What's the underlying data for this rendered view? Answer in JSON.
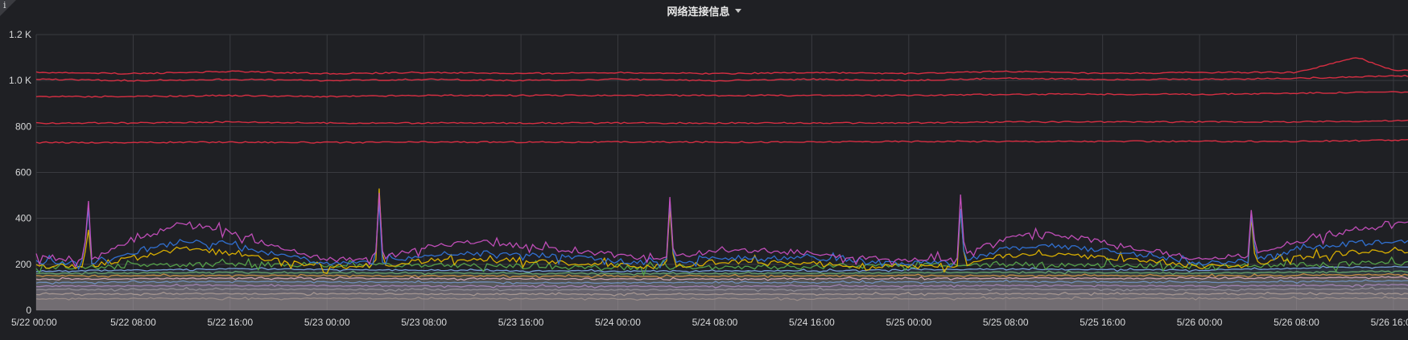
{
  "panel": {
    "title": "网络连接信息",
    "info_icon": "info-icon",
    "dropdown_icon": "caret-down-icon"
  },
  "chart_data": {
    "type": "line",
    "title": "网络连接信息",
    "xlabel": "",
    "ylabel": "",
    "ylim": [
      0,
      1200
    ],
    "xlim": [
      "2022-05-22T00:00",
      "2022-05-26T16:00"
    ],
    "grid": true,
    "legend": "none",
    "y_ticks": [
      {
        "value": 0,
        "label": "0"
      },
      {
        "value": 200,
        "label": "200"
      },
      {
        "value": 400,
        "label": "400"
      },
      {
        "value": 600,
        "label": "600"
      },
      {
        "value": 800,
        "label": "800"
      },
      {
        "value": 1000,
        "label": "1.0 K"
      },
      {
        "value": 1200,
        "label": "1.2 K"
      }
    ],
    "x_ticks": [
      {
        "value": 0,
        "label": "5/22 00:00"
      },
      {
        "value": 8,
        "label": "5/22 08:00"
      },
      {
        "value": 16,
        "label": "5/22 16:00"
      },
      {
        "value": 24,
        "label": "5/23 00:00"
      },
      {
        "value": 32,
        "label": "5/23 08:00"
      },
      {
        "value": 40,
        "label": "5/23 16:00"
      },
      {
        "value": 48,
        "label": "5/24 00:00"
      },
      {
        "value": 56,
        "label": "5/24 08:00"
      },
      {
        "value": 64,
        "label": "5/24 16:00"
      },
      {
        "value": 72,
        "label": "5/25 00:00"
      },
      {
        "value": 80,
        "label": "5/25 08:00"
      },
      {
        "value": 88,
        "label": "5/25 16:00"
      },
      {
        "value": 96,
        "label": "5/26 00:00"
      },
      {
        "value": 104,
        "label": "5/26 08:00"
      },
      {
        "value": 112,
        "label": "5/26 16:00"
      }
    ],
    "series": [
      {
        "color": "#e02f44",
        "x": [
          0,
          8,
          16,
          24,
          32,
          40,
          48,
          56,
          64,
          72,
          80,
          88,
          96,
          104,
          109,
          112
        ],
        "values": [
          1035,
          1030,
          1040,
          1030,
          1035,
          1030,
          1035,
          1030,
          1035,
          1030,
          1040,
          1030,
          1035,
          1035,
          1100,
          1045
        ]
      },
      {
        "color": "#e02f44",
        "x": [
          0,
          8,
          16,
          24,
          32,
          40,
          48,
          56,
          64,
          72,
          80,
          88,
          96,
          104,
          112
        ],
        "values": [
          1005,
          1000,
          1005,
          1000,
          1005,
          1000,
          1005,
          1000,
          1005,
          1000,
          1010,
          1005,
          1005,
          1010,
          1020
        ]
      },
      {
        "color": "#e02f44",
        "x": [
          0,
          8,
          16,
          24,
          32,
          40,
          48,
          56,
          64,
          72,
          80,
          88,
          96,
          104,
          112
        ],
        "values": [
          930,
          930,
          935,
          930,
          935,
          935,
          935,
          935,
          935,
          935,
          940,
          940,
          940,
          945,
          950
        ]
      },
      {
        "color": "#e02f44",
        "x": [
          0,
          8,
          16,
          24,
          32,
          40,
          48,
          56,
          64,
          72,
          80,
          88,
          96,
          104,
          112
        ],
        "values": [
          815,
          815,
          820,
          815,
          815,
          815,
          815,
          815,
          815,
          815,
          820,
          820,
          820,
          820,
          825
        ]
      },
      {
        "color": "#e02f44",
        "x": [
          0,
          8,
          16,
          24,
          32,
          40,
          48,
          56,
          64,
          72,
          80,
          88,
          96,
          104,
          112
        ],
        "values": [
          730,
          730,
          732,
          730,
          732,
          732,
          732,
          732,
          732,
          735,
          735,
          735,
          735,
          735,
          740
        ]
      },
      {
        "color": "#c850c0",
        "x": [
          0,
          4,
          4.2,
          4.5,
          8,
          12,
          16,
          20,
          24,
          28,
          28.3,
          28.6,
          32,
          36,
          40,
          44,
          48,
          52,
          52.3,
          52.6,
          56,
          60,
          64,
          68,
          72,
          76,
          76.3,
          76.6,
          80,
          84,
          88,
          92,
          96,
          100,
          100.3,
          100.6,
          104,
          108,
          112
        ],
        "values": [
          230,
          220,
          615,
          230,
          300,
          380,
          340,
          270,
          220,
          230,
          520,
          230,
          270,
          300,
          280,
          260,
          240,
          220,
          500,
          230,
          260,
          260,
          250,
          230,
          220,
          230,
          535,
          240,
          320,
          330,
          300,
          260,
          220,
          240,
          470,
          250,
          300,
          340,
          380
        ]
      },
      {
        "color": "#3274d9",
        "x": [
          0,
          4,
          4.2,
          4.5,
          8,
          12,
          16,
          20,
          24,
          28,
          28.3,
          28.6,
          32,
          36,
          40,
          44,
          48,
          52,
          52.3,
          52.6,
          56,
          60,
          64,
          68,
          72,
          76,
          76.3,
          76.6,
          80,
          84,
          88,
          92,
          96,
          100,
          100.3,
          100.6,
          104,
          108,
          112
        ],
        "values": [
          210,
          205,
          600,
          210,
          250,
          300,
          290,
          240,
          205,
          210,
          500,
          210,
          240,
          250,
          245,
          230,
          215,
          205,
          490,
          210,
          230,
          230,
          225,
          210,
          205,
          210,
          450,
          215,
          270,
          280,
          260,
          235,
          205,
          215,
          440,
          225,
          260,
          290,
          300
        ]
      },
      {
        "color": "#e0b400",
        "x": [
          0,
          4,
          4.2,
          4.5,
          8,
          12,
          16,
          20,
          24,
          28,
          28.3,
          28.6,
          32,
          36,
          40,
          44,
          48,
          52,
          52.3,
          52.6,
          56,
          60,
          64,
          68,
          72,
          76,
          76.3,
          76.6,
          80,
          84,
          88,
          92,
          96,
          100,
          100.3,
          100.6,
          104,
          108,
          112
        ],
        "values": [
          195,
          190,
          460,
          195,
          230,
          270,
          250,
          215,
          190,
          195,
          500,
          195,
          215,
          225,
          220,
          205,
          195,
          190,
          450,
          195,
          210,
          210,
          205,
          195,
          190,
          195,
          460,
          200,
          240,
          245,
          230,
          210,
          190,
          200,
          440,
          205,
          230,
          250,
          260
        ]
      },
      {
        "color": "#56a64b",
        "x": [
          0,
          16,
          32,
          48,
          64,
          80,
          96,
          112
        ],
        "values": [
          185,
          200,
          195,
          185,
          190,
          200,
          190,
          205
        ]
      },
      {
        "color": "#8ab8ff",
        "x": [
          0,
          16,
          32,
          48,
          64,
          80,
          96,
          112
        ],
        "values": [
          170,
          180,
          175,
          170,
          172,
          180,
          175,
          190
        ]
      },
      {
        "color": "#73bf69",
        "x": [
          0,
          16,
          32,
          48,
          64,
          80,
          96,
          112
        ],
        "values": [
          160,
          165,
          162,
          160,
          161,
          165,
          162,
          170
        ]
      },
      {
        "color": "#ff9830",
        "x": [
          0,
          16,
          32,
          48,
          64,
          80,
          96,
          112
        ],
        "values": [
          150,
          152,
          150,
          148,
          150,
          152,
          150,
          155
        ]
      },
      {
        "color": "#ffb8e0",
        "x": [
          0,
          16,
          32,
          48,
          64,
          80,
          96,
          112
        ],
        "values": [
          135,
          140,
          138,
          135,
          137,
          140,
          138,
          145
        ]
      },
      {
        "color": "#5794f2",
        "x": [
          0,
          16,
          32,
          48,
          64,
          80,
          96,
          112
        ],
        "values": [
          120,
          125,
          122,
          120,
          121,
          125,
          122,
          128
        ]
      },
      {
        "color": "#b877d9",
        "x": [
          0,
          16,
          32,
          48,
          64,
          80,
          96,
          112
        ],
        "values": [
          105,
          108,
          106,
          104,
          105,
          108,
          106,
          110
        ]
      },
      {
        "color": "#8f8f8f",
        "x": [
          0,
          16,
          32,
          48,
          64,
          80,
          96,
          112
        ],
        "values": [
          90,
          92,
          90,
          89,
          90,
          92,
          90,
          94
        ]
      },
      {
        "color": "#c4a583",
        "x": [
          0,
          16,
          32,
          48,
          64,
          80,
          96,
          112
        ],
        "values": [
          70,
          72,
          71,
          70,
          70,
          72,
          71,
          74
        ]
      },
      {
        "color": "#9e8068",
        "x": [
          0,
          16,
          32,
          48,
          64,
          80,
          96,
          112
        ],
        "values": [
          50,
          52,
          51,
          50,
          50,
          52,
          51,
          53
        ]
      }
    ]
  }
}
